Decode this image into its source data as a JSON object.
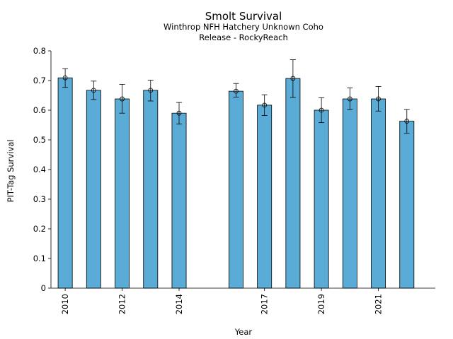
{
  "chart_data": {
    "type": "bar",
    "title": "Smolt Survival",
    "subtitle_lines": [
      "Winthrop NFH Hatchery Unknown Coho",
      "Release - RockyReach"
    ],
    "xlabel": "Year",
    "ylabel": "PIT-Tag Survival",
    "ylim": [
      0,
      0.8
    ],
    "yticks": [
      "0",
      "0.1",
      "0.2",
      "0.3",
      "0.4",
      "0.5",
      "0.6",
      "0.7",
      "0.8"
    ],
    "xlim": [
      2009.5,
      2023
    ],
    "xticks": [
      "2010",
      "2012",
      "2014",
      "2017",
      "2019",
      "2021"
    ],
    "grid": false,
    "bar_color": "#5aabd6",
    "x": [
      2010,
      2011,
      2012,
      2013,
      2014,
      2016,
      2017,
      2018,
      2019,
      2020,
      2021,
      2022
    ],
    "values": [
      0.709,
      0.667,
      0.638,
      0.667,
      0.59,
      0.664,
      0.617,
      0.707,
      0.6,
      0.638,
      0.638,
      0.563
    ],
    "error_low": [
      0.677,
      0.636,
      0.59,
      0.631,
      0.553,
      0.644,
      0.582,
      0.643,
      0.558,
      0.602,
      0.597,
      0.522
    ],
    "error_high": [
      0.74,
      0.698,
      0.687,
      0.701,
      0.626,
      0.69,
      0.652,
      0.77,
      0.642,
      0.675,
      0.68,
      0.602
    ]
  }
}
